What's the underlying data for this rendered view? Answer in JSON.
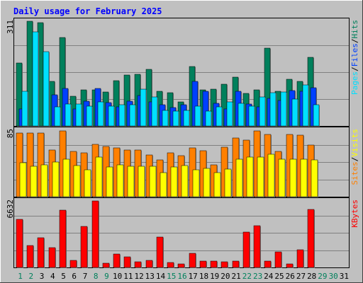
{
  "colors": {
    "background": "#c0c0c0",
    "title": "#0000ff",
    "axis_label": "#000000",
    "gridline": "#808080",
    "hits": "#00805c",
    "files": "#0040ff",
    "pages": "#00e0ff",
    "visits": "#ffff00",
    "sites": "#ff8000",
    "kbytes": "#ff0000",
    "weekend_day": "#00805c",
    "weekday": "#000000"
  },
  "chart_data": {
    "type": "bar",
    "title": "Daily usage for February 2025",
    "days": [
      "1",
      "2",
      "3",
      "4",
      "5",
      "6",
      "7",
      "8",
      "9",
      "10",
      "11",
      "12",
      "13",
      "14",
      "15",
      "16",
      "17",
      "18",
      "19",
      "20",
      "21",
      "22",
      "23",
      "24",
      "25",
      "26",
      "27",
      "28",
      "29",
      "30",
      "31"
    ],
    "weekend_days": [
      "1",
      "2",
      "8",
      "9",
      "15",
      "16",
      "22",
      "23",
      "29",
      "30"
    ],
    "panels": [
      {
        "name": "hits-files-pages",
        "scale_max": 311,
        "scale_label": "311",
        "legend": [
          {
            "label": "Pages",
            "color": "#00e0ff"
          },
          {
            "label": "/",
            "color": "#000000"
          },
          {
            "label": "Files",
            "color": "#0040ff"
          },
          {
            "label": "/",
            "color": "#000000"
          },
          {
            "label": "Hits",
            "color": "#00805c"
          }
        ],
        "series": [
          {
            "name": "Hits",
            "values": [
              187,
              311,
              306,
              132,
              262,
              88,
              108,
              107,
              100,
              134,
              152,
              154,
              168,
              103,
              99,
              72,
              177,
              107,
              110,
              125,
              146,
              97,
              107,
              231,
              104,
              138,
              132,
              204
            ]
          },
          {
            "name": "Files",
            "values": [
              50,
              0,
              0,
              92,
              112,
              50,
              74,
              112,
              70,
              56,
              73,
              90,
              72,
              62,
              54,
              64,
              132,
              104,
              68,
              50,
              104,
              66,
              56,
              82,
              76,
              106,
              102,
              113
            ]
          },
          {
            "name": "Pages",
            "values": [
              104,
              280,
              221,
              56,
              66,
              66,
              58,
              72,
              58,
              64,
              64,
              110,
              86,
              46,
              44,
              46,
              58,
              44,
              56,
              72,
              68,
              58,
              86,
              98,
              100,
              80,
              122,
              64
            ]
          }
        ]
      },
      {
        "name": "sites-visits",
        "scale_max": 85,
        "scale_label": "85",
        "legend": [
          {
            "label": "Sites",
            "color": "#ff8000"
          },
          {
            "label": "/",
            "color": "#000000"
          },
          {
            "label": "Visits",
            "color": "#ffff00"
          }
        ],
        "series": [
          {
            "name": "Sites",
            "values": [
              81,
              81,
              81,
              60,
              84,
              58,
              56,
              67,
              64,
              62,
              60,
              60,
              53,
              47,
              56,
              52,
              62,
              59,
              41,
              63,
              75,
              72,
              84,
              80,
              58,
              80,
              79,
              66
            ]
          },
          {
            "name": "Visits",
            "values": [
              43,
              39,
              41,
              44,
              48,
              40,
              34,
              51,
              38,
              41,
              39,
              39,
              39,
              31,
              38,
              40,
              34,
              36,
              31,
              35,
              48,
              51,
              51,
              54,
              48,
              48,
              48,
              47
            ]
          }
        ]
      },
      {
        "name": "kbytes",
        "scale_max": 6632,
        "scale_label": "6632",
        "legend": [
          {
            "label": "KBytes",
            "color": "#ff0000"
          }
        ],
        "series": [
          {
            "name": "KBytes",
            "values": [
              4800,
              2195,
              2960,
              2000,
              5680,
              730,
              4090,
              6632,
              450,
              1330,
              1040,
              565,
              730,
              3050,
              470,
              380,
              1380,
              640,
              640,
              540,
              640,
              3550,
              4180,
              660,
              1550,
              375,
              1760,
              5820
            ]
          }
        ]
      }
    ]
  }
}
